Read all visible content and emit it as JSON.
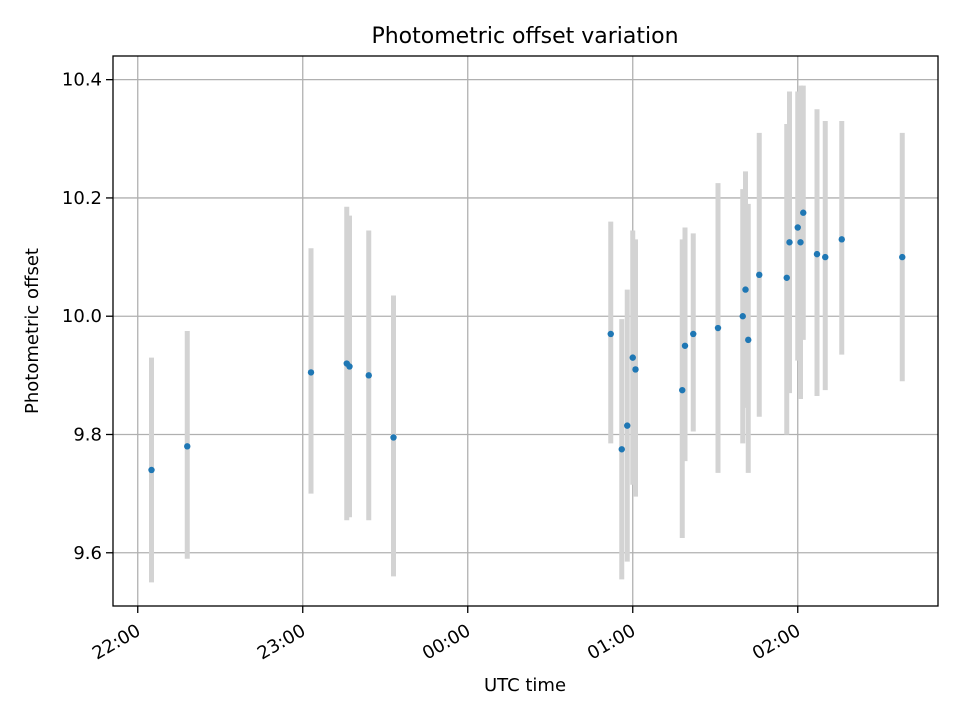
{
  "chart_data": {
    "type": "scatter",
    "title": "Photometric offset variation",
    "xlabel": "UTC time",
    "ylabel": "Photometric offset",
    "x_axis": "time",
    "xlim": [
      "21:51",
      "26:51"
    ],
    "ylim": [
      9.51,
      10.44
    ],
    "xticks": [
      {
        "label": "22:00",
        "value": "22:00"
      },
      {
        "label": "23:00",
        "value": "23:00"
      },
      {
        "label": "00:00",
        "value": "24:00"
      },
      {
        "label": "01:00",
        "value": "25:00"
      },
      {
        "label": "02:00",
        "value": "26:00"
      }
    ],
    "yticks": [
      9.6,
      9.8,
      10.0,
      10.2,
      10.4
    ],
    "grid": true,
    "legend": "none",
    "colors": {
      "point": "#1f77b4",
      "errorbar": "#d3d3d3",
      "grid": "#b0b0b0"
    },
    "series": [
      {
        "points": [
          {
            "x": "22:05",
            "y": 9.74,
            "ylo": 9.55,
            "yhi": 9.93
          },
          {
            "x": "22:18",
            "y": 9.78,
            "ylo": 9.59,
            "yhi": 9.975
          },
          {
            "x": "23:03",
            "y": 9.905,
            "ylo": 9.7,
            "yhi": 10.115
          },
          {
            "x": "23:16",
            "y": 9.92,
            "ylo": 9.655,
            "yhi": 10.185
          },
          {
            "x": "23:17",
            "y": 9.915,
            "ylo": 9.66,
            "yhi": 10.17
          },
          {
            "x": "23:24",
            "y": 9.9,
            "ylo": 9.655,
            "yhi": 10.145
          },
          {
            "x": "23:33",
            "y": 9.795,
            "ylo": 9.56,
            "yhi": 10.035
          },
          {
            "x": "24:52",
            "y": 9.97,
            "ylo": 9.785,
            "yhi": 10.16
          },
          {
            "x": "24:56",
            "y": 9.775,
            "ylo": 9.555,
            "yhi": 9.995
          },
          {
            "x": "24:58",
            "y": 9.815,
            "ylo": 9.585,
            "yhi": 10.045
          },
          {
            "x": "25:00",
            "y": 9.93,
            "ylo": 9.715,
            "yhi": 10.145
          },
          {
            "x": "25:01",
            "y": 9.91,
            "ylo": 9.695,
            "yhi": 10.13
          },
          {
            "x": "25:18",
            "y": 9.875,
            "ylo": 9.625,
            "yhi": 10.13
          },
          {
            "x": "25:19",
            "y": 9.95,
            "ylo": 9.755,
            "yhi": 10.15
          },
          {
            "x": "25:22",
            "y": 9.97,
            "ylo": 9.805,
            "yhi": 10.14
          },
          {
            "x": "25:31",
            "y": 9.98,
            "ylo": 9.735,
            "yhi": 10.225
          },
          {
            "x": "25:40",
            "y": 10.0,
            "ylo": 9.785,
            "yhi": 10.215
          },
          {
            "x": "25:41",
            "y": 10.045,
            "ylo": 9.845,
            "yhi": 10.245
          },
          {
            "x": "25:42",
            "y": 9.96,
            "ylo": 9.735,
            "yhi": 10.19
          },
          {
            "x": "25:46",
            "y": 10.07,
            "ylo": 9.83,
            "yhi": 10.31
          },
          {
            "x": "25:56",
            "y": 10.065,
            "ylo": 9.8,
            "yhi": 10.325
          },
          {
            "x": "25:57",
            "y": 10.125,
            "ylo": 9.87,
            "yhi": 10.38
          },
          {
            "x": "26:00",
            "y": 10.15,
            "ylo": 9.925,
            "yhi": 10.38
          },
          {
            "x": "26:01",
            "y": 10.125,
            "ylo": 9.86,
            "yhi": 10.39
          },
          {
            "x": "26:02",
            "y": 10.175,
            "ylo": 9.96,
            "yhi": 10.39
          },
          {
            "x": "26:07",
            "y": 10.105,
            "ylo": 9.865,
            "yhi": 10.35
          },
          {
            "x": "26:10",
            "y": 10.1,
            "ylo": 9.875,
            "yhi": 10.33
          },
          {
            "x": "26:16",
            "y": 10.13,
            "ylo": 9.935,
            "yhi": 10.33
          },
          {
            "x": "26:38",
            "y": 10.1,
            "ylo": 9.89,
            "yhi": 10.31
          }
        ]
      }
    ]
  }
}
